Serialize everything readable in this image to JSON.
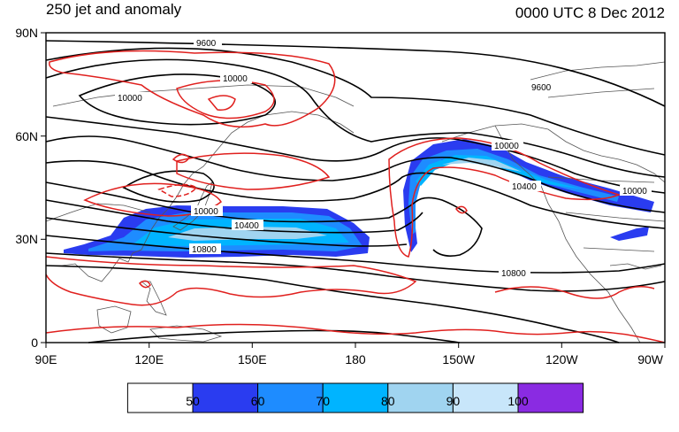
{
  "header": {
    "left_title": "250 jet and anomaly",
    "right_title": "0000 UTC 8 Dec 2012"
  },
  "axes": {
    "lat_ticks": [
      "90N",
      "60N",
      "30N",
      "0"
    ],
    "lon_ticks": [
      "90E",
      "120E",
      "150E",
      "180",
      "150W",
      "120W",
      "90W"
    ]
  },
  "contour_labels": [
    "9600",
    "10000",
    "10000",
    "9600",
    "10000",
    "10400",
    "10000",
    "10800",
    "10400",
    "10000",
    "10400",
    "10800"
  ],
  "colorbar": {
    "labels": [
      "50",
      "60",
      "70",
      "80",
      "90",
      "100"
    ],
    "colors": [
      "#ffffff",
      "#2a3cf0",
      "#1e8cff",
      "#00b4ff",
      "#a0d4f0",
      "#c8e6fa",
      "#8a2be2"
    ]
  },
  "colors": {
    "height_contour": "#000000",
    "anomaly_contour": "#e0201e",
    "coastline": "#555555"
  }
}
